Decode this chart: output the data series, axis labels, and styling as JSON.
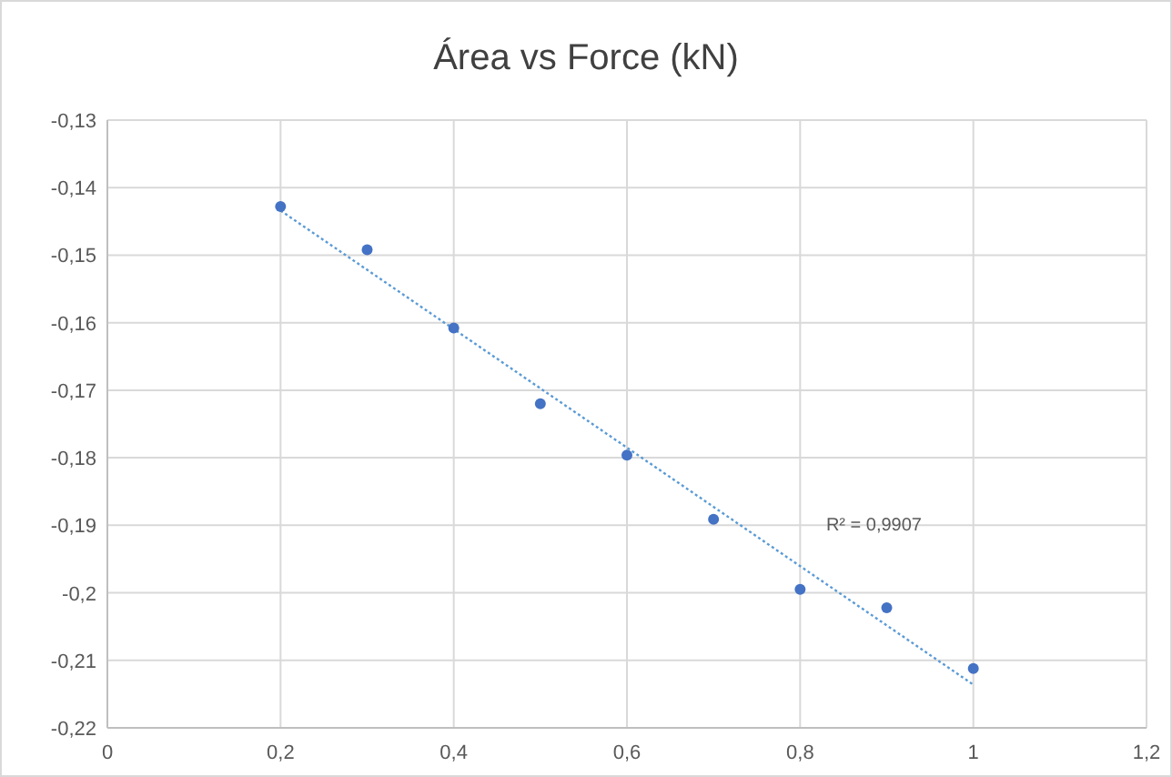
{
  "chart_data": {
    "type": "scatter",
    "title": "Área vs Force (kN)",
    "xlim": [
      0,
      1.2
    ],
    "xticks": [
      0,
      {
        "value": 0.2,
        "label": "0,2"
      },
      {
        "value": 0.4,
        "label": "0,4"
      },
      {
        "value": 0.6,
        "label": "0,6"
      },
      {
        "value": 0.8,
        "label": "0,8"
      },
      1,
      {
        "value": 1.2,
        "label": "1,2"
      }
    ],
    "ylim": [
      -0.22,
      -0.13
    ],
    "yticks": [
      {
        "value": -0.22,
        "label": "-0,22"
      },
      {
        "value": -0.21,
        "label": "-0,21"
      },
      {
        "value": -0.2,
        "label": "-0,2"
      },
      {
        "value": -0.19,
        "label": "-0,19"
      },
      {
        "value": -0.18,
        "label": "-0,18"
      },
      {
        "value": -0.17,
        "label": "-0,17"
      },
      {
        "value": -0.16,
        "label": "-0,16"
      },
      {
        "value": -0.15,
        "label": "-0,15"
      },
      {
        "value": -0.14,
        "label": "-0,14"
      },
      {
        "value": -0.13,
        "label": "-0,13"
      }
    ],
    "grid": true,
    "marker": "circle",
    "series": [
      {
        "color": "#4472c4",
        "x": [
          0.2,
          0.3,
          0.4,
          0.5,
          0.6,
          0.7,
          0.8,
          0.9,
          1.0
        ],
        "values": [
          -0.1428,
          -0.1492,
          -0.1608,
          -0.172,
          -0.1796,
          -0.1891,
          -0.1995,
          -0.2022,
          -0.2112
        ]
      },
      {
        "type": "line",
        "color": "#5b9bd5",
        "line_style": "dotted",
        "marker": "none",
        "x": [
          0.2,
          1.0
        ],
        "values": [
          -0.1434,
          -0.2136
        ]
      }
    ],
    "annotations": [
      "R² = 0,9907"
    ]
  }
}
